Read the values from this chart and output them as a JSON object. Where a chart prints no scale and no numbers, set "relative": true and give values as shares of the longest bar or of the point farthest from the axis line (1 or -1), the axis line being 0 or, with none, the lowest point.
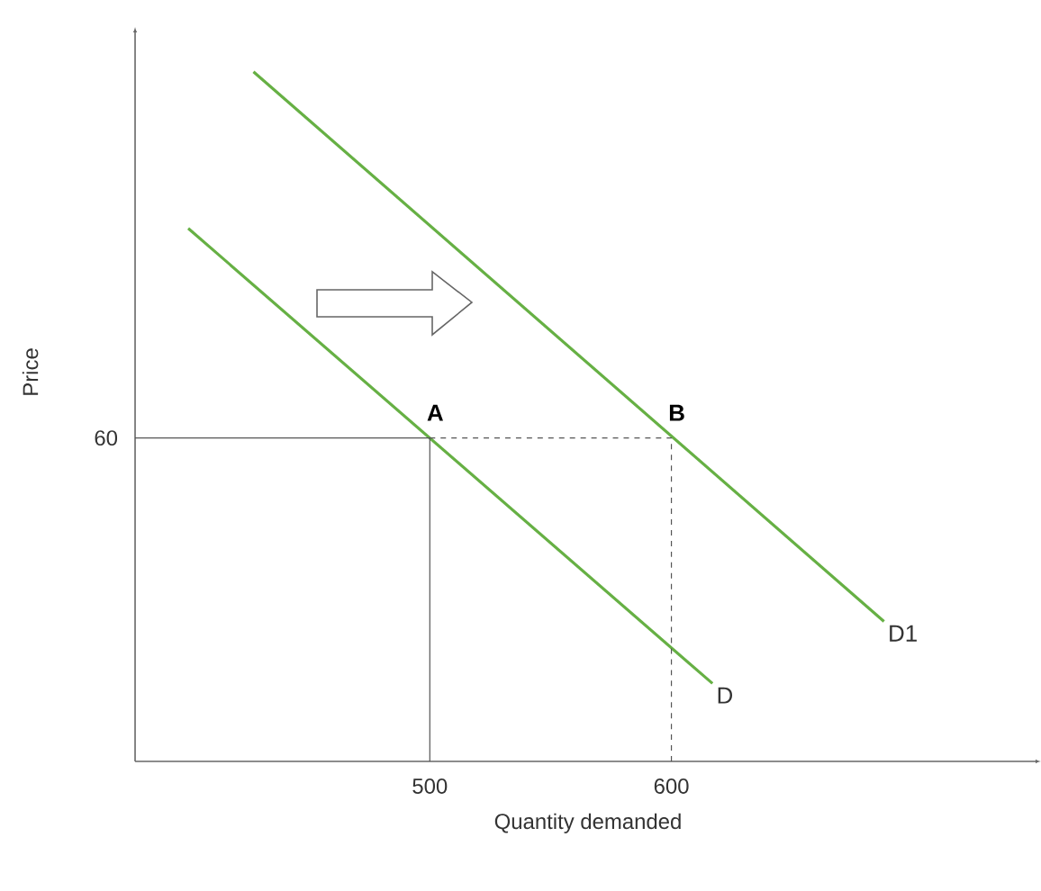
{
  "chart_data": {
    "type": "line",
    "xlabel": "Quantity demanded",
    "ylabel": "Price",
    "xlim": [
      378,
      753
    ],
    "xticks": [
      500,
      600
    ],
    "relative": true,
    "tick_labels": "x",
    "grid": false,
    "series": [
      {
        "name": "D",
        "color": "#66b044",
        "x": [
          400,
          617
        ],
        "values": [
          0.773,
          0.113
        ]
      },
      {
        "name": "D1",
        "color": "#66b044",
        "x": [
          427,
          688
        ],
        "values": [
          1,
          0.203
        ]
      },
      {
        "color": "#555555",
        "x": [
          378,
          500,
          500
        ],
        "values": [
          0.469,
          0.469,
          0
        ],
        "line_style": "solid"
      },
      {
        "color": "#555555",
        "x": [
          500,
          600,
          600
        ],
        "values": [
          0.469,
          0.469,
          0
        ],
        "line_style": "dashed"
      }
    ],
    "annotations": [
      {
        "text": "A",
        "x": 500,
        "y": 0.469
      },
      {
        "text": "B",
        "x": 600,
        "y": 0.469
      },
      {
        "text": "60",
        "x": 378,
        "y": 0.469
      }
    ]
  }
}
